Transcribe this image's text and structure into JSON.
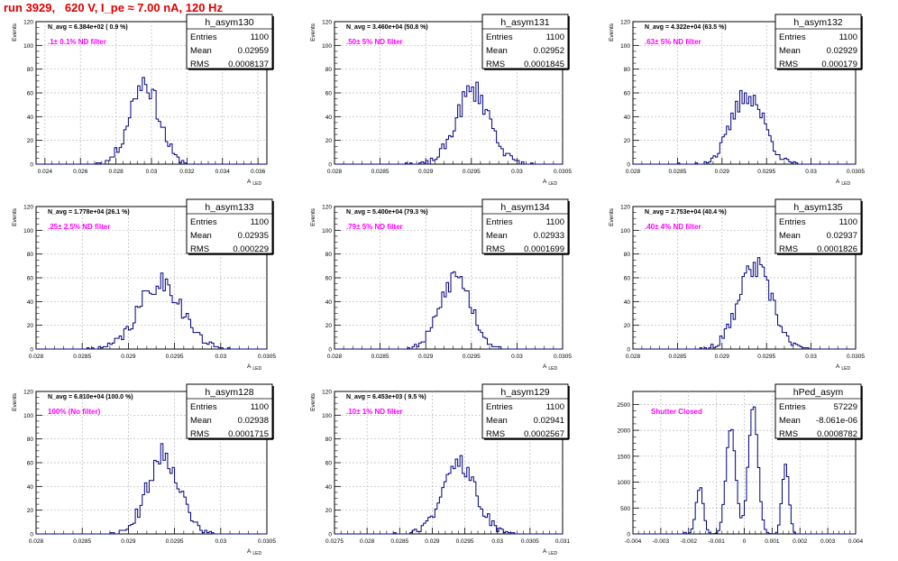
{
  "run_title": "run 3929,   620 V, I_pe ≈ 7.00 nA, 120 Hz",
  "chart_data": [
    {
      "type": "histogram",
      "name": "h_asym130",
      "ylabel": "Events",
      "xlabel": "A",
      "xlabel_sub": "LED",
      "ylim": [
        0,
        120
      ],
      "xlim": [
        0.0235,
        0.0365
      ],
      "yticks": [
        0,
        20,
        40,
        60,
        80,
        100,
        120
      ],
      "xticks": [
        0.024,
        0.026,
        0.028,
        0.03,
        0.032,
        0.034,
        0.036
      ],
      "xtick_labels": [
        "0.024",
        "0.026",
        "0.028",
        "0.03",
        "0.032",
        "0.034",
        "0.036"
      ],
      "grid": true,
      "navg": "N_avg = 6.384e+02 ( 0.9 %)",
      "filter": ".1± 0.1% ND filter",
      "stats": {
        "Entries": "1100",
        "Mean": "0.02959",
        "RMS": "0.0008137"
      },
      "mean": 0.02959,
      "rms": 0.0008137,
      "peak": 78,
      "seed": 11
    },
    {
      "type": "histogram",
      "name": "h_asym131",
      "ylabel": "Events",
      "xlabel": "A",
      "xlabel_sub": "LED",
      "ylim": [
        0,
        120
      ],
      "xlim": [
        0.028,
        0.0305
      ],
      "yticks": [
        0,
        20,
        40,
        60,
        80,
        100,
        120
      ],
      "xticks": [
        0.028,
        0.0285,
        0.029,
        0.0295,
        0.03,
        0.0305
      ],
      "xtick_labels": [
        "0.028",
        "0.0285",
        "0.029",
        "0.0295",
        "0.03",
        "0.0305"
      ],
      "grid": true,
      "navg": "N_avg = 3.460e+04 (50.8 %)",
      "filter": ".50± 5% ND filter",
      "stats": {
        "Entries": "1100",
        "Mean": "0.02952",
        "RMS": "0.0001845"
      },
      "mean": 0.02952,
      "rms": 0.0001845,
      "peak": 69,
      "seed": 23
    },
    {
      "type": "histogram",
      "name": "h_asym132",
      "ylabel": "Events",
      "xlabel": "A",
      "xlabel_sub": "LED",
      "ylim": [
        0,
        120
      ],
      "xlim": [
        0.028,
        0.0305
      ],
      "yticks": [
        0,
        20,
        40,
        60,
        80,
        100,
        120
      ],
      "xticks": [
        0.028,
        0.0285,
        0.029,
        0.0295,
        0.03,
        0.0305
      ],
      "xtick_labels": [
        "0.028",
        "0.0285",
        "0.029",
        "0.0295",
        "0.03",
        "0.0305"
      ],
      "grid": true,
      "navg": "N_avg = 4.322e+04 (63.5 %)",
      "filter": ".63± 5% ND filter",
      "stats": {
        "Entries": "1100",
        "Mean": "0.02929",
        "RMS": "0.000179"
      },
      "mean": 0.02929,
      "rms": 0.000179,
      "peak": 66,
      "seed": 37
    },
    {
      "type": "histogram",
      "name": "h_asym133",
      "ylabel": "Events",
      "xlabel": "A",
      "xlabel_sub": "LED",
      "ylim": [
        0,
        120
      ],
      "xlim": [
        0.028,
        0.0305
      ],
      "yticks": [
        0,
        20,
        40,
        60,
        80,
        100,
        120
      ],
      "xticks": [
        0.028,
        0.0285,
        0.029,
        0.0295,
        0.03,
        0.0305
      ],
      "xtick_labels": [
        "0.028",
        "0.0285",
        "0.029",
        "0.0295",
        "0.03",
        "0.0305"
      ],
      "grid": true,
      "navg": "N_avg = 1.778e+04 (26.1 %)",
      "filter": ".25± 2.5% ND filter",
      "stats": {
        "Entries": "1100",
        "Mean": "0.02935",
        "RMS": "0.000229"
      },
      "mean": 0.02935,
      "rms": 0.000229,
      "peak": 63,
      "seed": 41
    },
    {
      "type": "histogram",
      "name": "h_asym134",
      "ylabel": "Events",
      "xlabel": "A",
      "xlabel_sub": "LED",
      "ylim": [
        0,
        120
      ],
      "xlim": [
        0.028,
        0.0305
      ],
      "yticks": [
        0,
        20,
        40,
        60,
        80,
        100,
        120
      ],
      "xticks": [
        0.028,
        0.0285,
        0.029,
        0.0295,
        0.03,
        0.0305
      ],
      "xtick_labels": [
        "0.028",
        "0.0285",
        "0.029",
        "0.0295",
        "0.03",
        "0.0305"
      ],
      "grid": true,
      "navg": "N_avg = 5.400e+04 (79.3 %)",
      "filter": ".79± 5% ND filter",
      "stats": {
        "Entries": "1100",
        "Mean": "0.02933",
        "RMS": "0.0001699"
      },
      "mean": 0.02933,
      "rms": 0.0001699,
      "peak": 68,
      "seed": 53
    },
    {
      "type": "histogram",
      "name": "h_asym135",
      "ylabel": "Events",
      "xlabel": "A",
      "xlabel_sub": "LED",
      "ylim": [
        0,
        120
      ],
      "xlim": [
        0.028,
        0.0305
      ],
      "yticks": [
        0,
        20,
        40,
        60,
        80,
        100,
        120
      ],
      "xticks": [
        0.028,
        0.0285,
        0.029,
        0.0295,
        0.03,
        0.0305
      ],
      "xtick_labels": [
        "0.028",
        "0.0285",
        "0.029",
        "0.0295",
        "0.03",
        "0.0305"
      ],
      "grid": true,
      "navg": "N_avg = 2.753e+04 (40.4 %)",
      "filter": ".40± 4% ND filter",
      "stats": {
        "Entries": "1100",
        "Mean": "0.02937",
        "RMS": "0.0001826"
      },
      "mean": 0.02937,
      "rms": 0.0001826,
      "peak": 77,
      "seed": 67
    },
    {
      "type": "histogram",
      "name": "h_asym128",
      "ylabel": "Events",
      "xlabel": "A",
      "xlabel_sub": "LED",
      "ylim": [
        0,
        120
      ],
      "xlim": [
        0.028,
        0.0305
      ],
      "yticks": [
        0,
        20,
        40,
        60,
        80,
        100,
        120
      ],
      "xticks": [
        0.028,
        0.0285,
        0.029,
        0.0295,
        0.03,
        0.0305
      ],
      "xtick_labels": [
        "0.028",
        "0.0285",
        "0.029",
        "0.0295",
        "0.03",
        "0.0305"
      ],
      "grid": true,
      "navg": "N_avg = 6.810e+04 (100.0 %)",
      "filter": "100% (No filter)",
      "stats": {
        "Entries": "1100",
        "Mean": "0.02938",
        "RMS": "0.0001715"
      },
      "mean": 0.02938,
      "rms": 0.0001715,
      "peak": 75,
      "seed": 71
    },
    {
      "type": "histogram",
      "name": "h_asym129",
      "ylabel": "Events",
      "xlabel": "A",
      "xlabel_sub": "LED",
      "ylim": [
        0,
        120
      ],
      "xlim": [
        0.0275,
        0.031
      ],
      "yticks": [
        0,
        20,
        40,
        60,
        80,
        100,
        120
      ],
      "xticks": [
        0.0275,
        0.028,
        0.0285,
        0.029,
        0.0295,
        0.03,
        0.0305,
        0.031
      ],
      "xtick_labels": [
        "0.0275",
        "0.028",
        "0.0285",
        "0.029",
        "0.0295",
        "0.03",
        "0.0305",
        "0.031"
      ],
      "grid": true,
      "navg": "N_avg = 6.453e+03 ( 9.5 %)",
      "filter": ".10± 1% ND filter",
      "stats": {
        "Entries": "1100",
        "Mean": "0.02941",
        "RMS": "0.0002567"
      },
      "mean": 0.02941,
      "rms": 0.0002567,
      "peak": 66,
      "seed": 89
    },
    {
      "type": "histogram",
      "name": "hPed_asym",
      "ylabel": "",
      "xlabel": "",
      "xlabel_sub": "",
      "ylim": [
        0,
        2750
      ],
      "xlim": [
        -0.004,
        0.004
      ],
      "yticks": [
        0,
        500,
        1000,
        1500,
        2000,
        2500
      ],
      "xticks": [
        -0.004,
        -0.003,
        -0.002,
        -0.001,
        0,
        0.001,
        0.002,
        0.003,
        0.004
      ],
      "xtick_labels": [
        "-0.004",
        "-0.003",
        "-0.002",
        "-0.001",
        "0",
        "0.001",
        "0.002",
        "0.003",
        "0.004"
      ],
      "grid": true,
      "navg": "",
      "filter": "Shutter Closed",
      "stats": {
        "Entries": "57229",
        "Mean": "-8.061e-06",
        "RMS": "0.0008782"
      },
      "peaks": [
        {
          "mu": -0.0016,
          "sigma": 0.00013,
          "amp": 900
        },
        {
          "mu": -0.00048,
          "sigma": 0.00017,
          "amp": 2100
        },
        {
          "mu": 0.00032,
          "sigma": 0.00017,
          "amp": 2500
        },
        {
          "mu": 0.00148,
          "sigma": 0.00012,
          "amp": 1350
        }
      ],
      "seed": 97
    }
  ]
}
